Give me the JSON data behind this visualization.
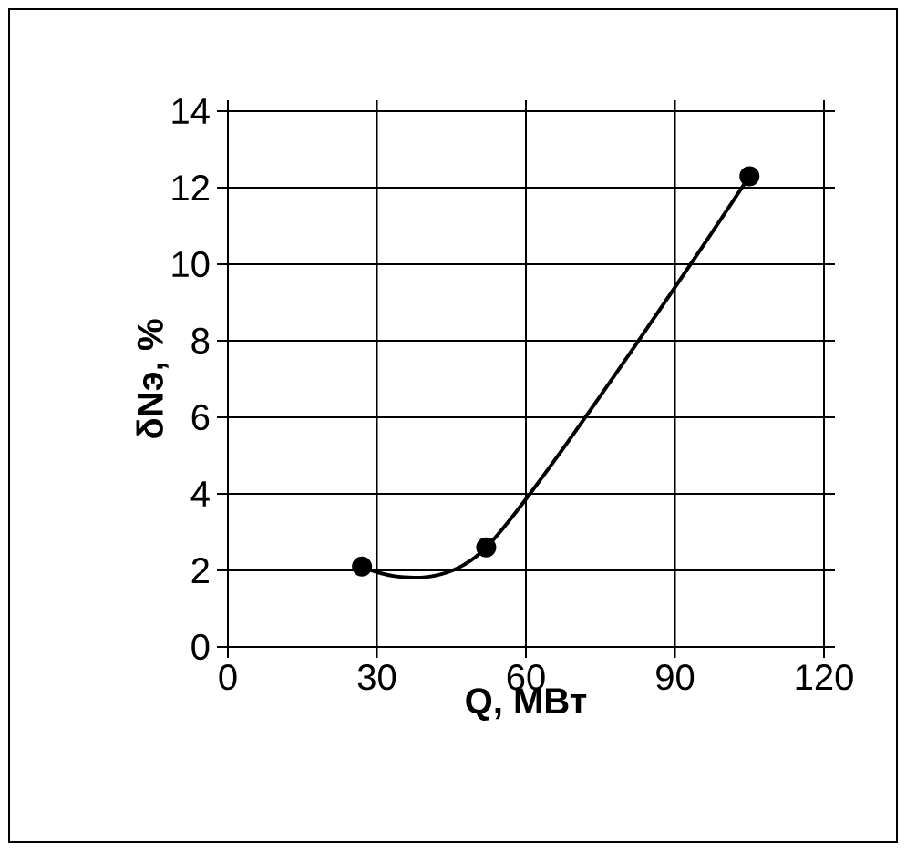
{
  "chart_data": {
    "type": "line",
    "xlabel": "Q, МВт",
    "ylabel": "δNэ, %",
    "x": [
      27,
      52,
      105
    ],
    "values": [
      2.1,
      2.6,
      12.3
    ],
    "color": "#000000",
    "marker": "circle",
    "line_style": "solid",
    "grid": true,
    "xlim": [
      0,
      120
    ],
    "xticks": [
      0,
      30,
      60,
      90,
      120
    ],
    "ylim": [
      0,
      14
    ],
    "yticks": [
      0,
      2,
      4,
      6,
      8,
      10,
      12,
      14
    ]
  }
}
